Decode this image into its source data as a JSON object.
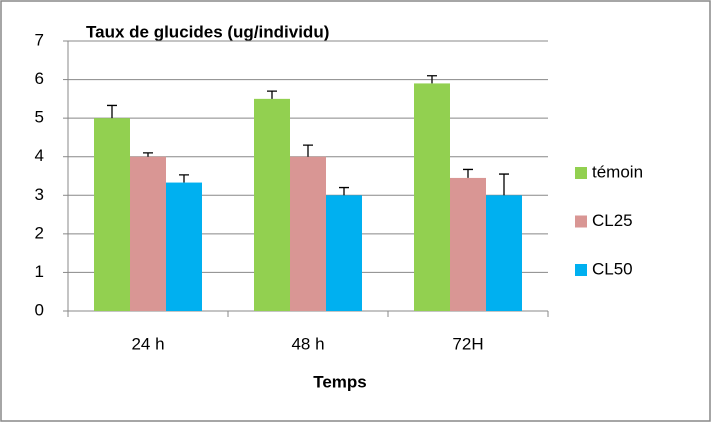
{
  "chart_data": {
    "type": "bar",
    "title": "Taux de glucides (ug/individu)",
    "x_label": "Temps",
    "categories": [
      "24 h",
      "48 h",
      "72H"
    ],
    "series": [
      {
        "name": "témoin",
        "color": "#92d050",
        "values": [
          5,
          5.5,
          5.9
        ],
        "errors": [
          0.33,
          0.2,
          0.2
        ]
      },
      {
        "name": "CL25",
        "color": "#d99694",
        "values": [
          4,
          4,
          3.45
        ],
        "errors": [
          0.1,
          0.3,
          0.22
        ]
      },
      {
        "name": "CL50",
        "color": "#00b0f0",
        "values": [
          3.33,
          3,
          3
        ],
        "errors": [
          0.2,
          0.2,
          0.55
        ]
      }
    ],
    "ylim": [
      0,
      7
    ],
    "yticks": [
      0,
      1,
      2,
      3,
      4,
      5,
      6,
      7
    ],
    "grid": true,
    "legend": "right"
  }
}
